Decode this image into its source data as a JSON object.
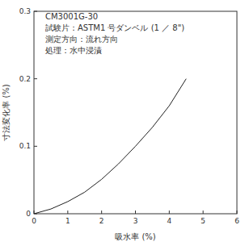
{
  "chart_data": {
    "type": "line",
    "title": "CM3001G-30",
    "annotations": [
      "試験片：ASTM1 号ダンベル (1 ／ 8\")",
      "測定方向：流れ方向",
      "処理：水中浸漬"
    ],
    "x_label": "吸水率 (%)",
    "y_label": "寸法変化率 (%)",
    "x": [
      0,
      0.5,
      1,
      1.5,
      2,
      2.5,
      3,
      3.5,
      4,
      4.5
    ],
    "values": [
      0,
      0.007,
      0.018,
      0.032,
      0.051,
      0.074,
      0.1,
      0.128,
      0.16,
      0.2
    ],
    "color": "#222222",
    "xlim": [
      0,
      6
    ],
    "xticks": [
      0,
      1,
      2,
      3,
      4,
      5,
      6
    ],
    "ylim": [
      0,
      0.3
    ],
    "yticks": [
      0,
      0.1,
      0.2,
      0.3
    ],
    "grid": false
  }
}
